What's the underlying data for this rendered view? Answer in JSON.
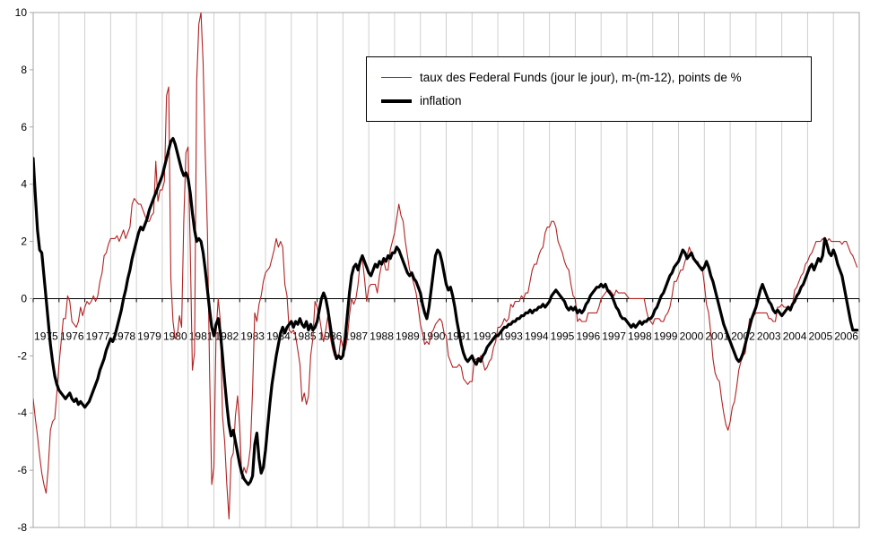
{
  "chart_data": {
    "type": "line",
    "title": "",
    "xlabel": "",
    "ylabel": "",
    "x_range": [
      1975,
      2007
    ],
    "ylim": [
      -8,
      10
    ],
    "y_ticks": [
      10,
      8,
      6,
      4,
      2,
      0,
      -2,
      -4,
      -6,
      -8
    ],
    "x_tick_years": [
      1975,
      1976,
      1977,
      1978,
      1979,
      1980,
      1981,
      1982,
      1983,
      1984,
      1985,
      1986,
      1987,
      1988,
      1989,
      1990,
      1991,
      1992,
      1993,
      1994,
      1995,
      1996,
      1997,
      1998,
      1999,
      2000,
      2001,
      2002,
      2003,
      2004,
      2005,
      2006
    ],
    "points_per_year": 12,
    "grid": "vertical-yearly-only",
    "legend_position": "inside-top-center",
    "colors": {
      "grid": "#cfcfcf",
      "border": "#a6a6a6",
      "axis": "#000000"
    },
    "series": [
      {
        "name": "taux des Federal Funds (jour le jour), m-(m-12), points de %",
        "color": "#b22222",
        "width": 1.1,
        "values": [
          -3.5,
          -4.2,
          -4.8,
          -5.5,
          -6.1,
          -6.5,
          -6.8,
          -5.9,
          -4.6,
          -4.3,
          -4.2,
          -3.3,
          -2.3,
          -1.5,
          -0.7,
          -0.7,
          0.1,
          -0.1,
          -0.8,
          -0.9,
          -1.0,
          -0.8,
          -0.3,
          -0.6,
          -0.3,
          -0.1,
          -0.2,
          -0.1,
          0.1,
          -0.1,
          0.1,
          0.6,
          0.9,
          1.5,
          1.6,
          1.9,
          2.1,
          2.1,
          2.1,
          2.2,
          2.0,
          2.2,
          2.4,
          2.1,
          2.3,
          2.5,
          3.3,
          3.5,
          3.4,
          3.3,
          3.3,
          3.1,
          2.9,
          2.7,
          2.7,
          2.9,
          3.0,
          4.8,
          3.4,
          3.8,
          3.8,
          4.1,
          7.1,
          7.4,
          0.7,
          -0.8,
          -1.4,
          -1.3,
          -0.6,
          -1.0,
          2.7,
          5.1,
          5.3,
          1.8,
          -2.5,
          -1.9,
          7.6,
          9.6,
          10.0,
          8.2,
          5.0,
          2.3,
          -2.6,
          -6.5,
          -5.9,
          -1.2,
          0.0,
          -0.8,
          -4.1,
          -5.0,
          -6.5,
          -7.7,
          -5.6,
          -5.4,
          -4.1,
          -3.4,
          -4.5,
          -6.3,
          -5.9,
          -6.1,
          -5.8,
          -5.2,
          -3.2,
          -0.5,
          -0.8,
          -0.2,
          0.1,
          0.6,
          0.9,
          1.0,
          1.1,
          1.4,
          1.7,
          2.1,
          1.8,
          2.0,
          1.8,
          0.5,
          0.1,
          -1.1,
          -1.2,
          -1.1,
          -1.3,
          -1.8,
          -2.3,
          -3.6,
          -3.3,
          -3.7,
          -3.4,
          -2.0,
          -1.4,
          -0.1,
          -0.3,
          -0.6,
          -1.1,
          -1.5,
          -1.1,
          -0.6,
          -1.3,
          -1.7,
          -2.0,
          -2.1,
          -2.0,
          -1.4,
          -1.7,
          -1.8,
          -1.4,
          -0.6,
          0.0,
          -0.2,
          0.0,
          0.5,
          1.3,
          1.4,
          0.7,
          -0.1,
          0.4,
          0.5,
          0.5,
          0.5,
          0.2,
          0.8,
          1.2,
          1.3,
          1.0,
          1.0,
          1.7,
          2.0,
          2.3,
          2.8,
          3.3,
          2.9,
          2.7,
          2.0,
          1.5,
          1.0,
          0.8,
          0.5,
          0.2,
          -0.3,
          -0.9,
          -1.2,
          -1.6,
          -1.5,
          -1.6,
          -1.2,
          -1.1,
          -0.9,
          -0.8,
          -0.7,
          -0.8,
          -1.2,
          -1.3,
          -2.0,
          -2.2,
          -2.4,
          -2.4,
          -2.4,
          -2.3,
          -2.4,
          -2.8,
          -2.9,
          -3.0,
          -2.9,
          -2.9,
          -2.2,
          -2.1,
          -2.2,
          -2.0,
          -2.2,
          -2.5,
          -2.4,
          -2.2,
          -2.1,
          -1.7,
          -1.5,
          -1.0,
          -1.0,
          -0.9,
          -0.7,
          -0.8,
          -0.7,
          -0.2,
          -0.3,
          -0.1,
          -0.1,
          -0.1,
          0.1,
          0.0,
          0.2,
          0.2,
          0.6,
          1.0,
          1.2,
          1.2,
          1.5,
          1.7,
          1.8,
          2.3,
          2.5,
          2.5,
          2.7,
          2.7,
          2.5,
          2.0,
          1.8,
          1.6,
          1.3,
          1.1,
          1.0,
          0.5,
          0.1,
          0.0,
          -0.8,
          -0.7,
          -0.8,
          -0.8,
          -0.8,
          -0.5,
          -0.5,
          -0.5,
          -0.5,
          -0.5,
          -0.3,
          0.0,
          0.1,
          0.2,
          0.3,
          0.3,
          0.2,
          0.1,
          0.3,
          0.2,
          0.2,
          0.2,
          0.2,
          0.1,
          0.0,
          0.0,
          0.0,
          0.0,
          0.0,
          0.0,
          0.0,
          0.0,
          -0.4,
          -0.7,
          -0.8,
          -0.9,
          -0.7,
          -0.7,
          -0.7,
          -0.8,
          -0.8,
          -0.6,
          -0.5,
          -0.3,
          0.1,
          0.6,
          0.6,
          0.8,
          1.0,
          1.0,
          1.3,
          1.5,
          1.8,
          1.6,
          1.4,
          1.3,
          1.3,
          1.1,
          1.1,
          0.5,
          -0.2,
          -0.5,
          -1.2,
          -2.1,
          -2.6,
          -2.8,
          -2.9,
          -3.5,
          -4.0,
          -4.4,
          -4.6,
          -4.3,
          -3.8,
          -3.6,
          -3.1,
          -2.5,
          -2.2,
          -2.0,
          -1.9,
          -1.3,
          -0.7,
          -0.8,
          -0.6,
          -0.5,
          -0.5,
          -0.5,
          -0.5,
          -0.5,
          -0.5,
          -0.7,
          -0.7,
          -0.8,
          -0.8,
          -0.3,
          -0.3,
          -0.2,
          -0.3,
          -0.3,
          -0.3,
          -0.3,
          -0.2,
          0.3,
          0.4,
          0.6,
          0.8,
          0.9,
          1.2,
          1.3,
          1.5,
          1.6,
          1.8,
          2.0,
          2.0,
          2.0,
          2.1,
          2.0,
          2.0,
          2.1,
          2.0,
          2.0,
          2.0,
          2.0,
          2.0,
          1.9,
          2.0,
          2.0,
          1.8,
          1.6,
          1.5,
          1.3,
          1.1
        ]
      },
      {
        "name": "inflation",
        "color": "#000000",
        "width": 3.2,
        "values": [
          4.9,
          3.6,
          2.4,
          1.7,
          1.6,
          0.8,
          0.0,
          -0.8,
          -1.6,
          -2.2,
          -2.7,
          -3.0,
          -3.2,
          -3.3,
          -3.4,
          -3.5,
          -3.4,
          -3.3,
          -3.5,
          -3.6,
          -3.5,
          -3.7,
          -3.6,
          -3.7,
          -3.8,
          -3.7,
          -3.6,
          -3.4,
          -3.2,
          -3.0,
          -2.8,
          -2.5,
          -2.3,
          -2.1,
          -1.8,
          -1.6,
          -1.4,
          -1.5,
          -1.3,
          -1.0,
          -0.7,
          -0.4,
          0.0,
          0.3,
          0.7,
          1.0,
          1.4,
          1.7,
          2.0,
          2.3,
          2.5,
          2.4,
          2.6,
          2.8,
          3.1,
          3.3,
          3.5,
          3.7,
          3.9,
          4.1,
          4.3,
          4.6,
          4.9,
          5.2,
          5.5,
          5.6,
          5.4,
          5.1,
          4.8,
          4.5,
          4.3,
          4.4,
          4.2,
          3.7,
          3.0,
          2.4,
          2.0,
          2.1,
          2.0,
          1.6,
          1.0,
          0.3,
          -0.4,
          -1.0,
          -1.3,
          -0.9,
          -0.7,
          -1.2,
          -2.0,
          -2.9,
          -3.7,
          -4.4,
          -4.8,
          -4.6,
          -5.0,
          -5.4,
          -5.8,
          -6.1,
          -6.3,
          -6.4,
          -6.5,
          -6.4,
          -6.2,
          -5.1,
          -4.7,
          -5.6,
          -6.1,
          -5.9,
          -5.3,
          -4.5,
          -3.7,
          -3.0,
          -2.5,
          -2.0,
          -1.6,
          -1.2,
          -1.0,
          -1.2,
          -1.0,
          -0.9,
          -0.8,
          -1.0,
          -0.8,
          -0.9,
          -0.7,
          -0.9,
          -1.0,
          -0.8,
          -1.1,
          -0.9,
          -1.1,
          -1.0,
          -0.8,
          -0.4,
          0.0,
          0.2,
          0.0,
          -0.4,
          -0.9,
          -1.4,
          -1.8,
          -2.1,
          -2.0,
          -2.1,
          -2.0,
          -1.4,
          -0.6,
          0.2,
          0.8,
          1.1,
          1.2,
          1.0,
          1.3,
          1.5,
          1.3,
          1.1,
          0.9,
          0.8,
          1.0,
          1.2,
          1.1,
          1.3,
          1.2,
          1.4,
          1.3,
          1.5,
          1.4,
          1.6,
          1.6,
          1.8,
          1.7,
          1.5,
          1.3,
          1.1,
          0.9,
          0.8,
          0.9,
          0.7,
          0.6,
          0.4,
          0.2,
          -0.2,
          -0.5,
          -0.7,
          -0.3,
          0.3,
          0.9,
          1.5,
          1.7,
          1.6,
          1.3,
          0.9,
          0.5,
          0.3,
          0.4,
          0.1,
          -0.3,
          -0.8,
          -1.2,
          -1.6,
          -1.9,
          -2.1,
          -2.2,
          -2.1,
          -2.0,
          -2.2,
          -2.3,
          -2.1,
          -2.2,
          -2.0,
          -1.9,
          -1.7,
          -1.6,
          -1.5,
          -1.4,
          -1.3,
          -1.3,
          -1.2,
          -1.1,
          -1.0,
          -1.0,
          -0.9,
          -0.9,
          -0.8,
          -0.8,
          -0.7,
          -0.7,
          -0.6,
          -0.6,
          -0.5,
          -0.5,
          -0.4,
          -0.5,
          -0.4,
          -0.4,
          -0.3,
          -0.3,
          -0.2,
          -0.3,
          -0.2,
          -0.1,
          0.1,
          0.2,
          0.3,
          0.2,
          0.1,
          0.0,
          -0.1,
          -0.3,
          -0.4,
          -0.3,
          -0.4,
          -0.3,
          -0.5,
          -0.4,
          -0.5,
          -0.4,
          -0.2,
          -0.1,
          0.1,
          0.2,
          0.3,
          0.4,
          0.4,
          0.5,
          0.4,
          0.5,
          0.3,
          0.2,
          0.1,
          -0.1,
          -0.3,
          -0.4,
          -0.6,
          -0.7,
          -0.7,
          -0.8,
          -0.9,
          -1.0,
          -0.9,
          -1.0,
          -0.9,
          -0.8,
          -0.9,
          -0.8,
          -0.8,
          -0.7,
          -0.7,
          -0.6,
          -0.4,
          -0.3,
          -0.1,
          0.1,
          0.2,
          0.4,
          0.6,
          0.8,
          0.9,
          1.1,
          1.2,
          1.3,
          1.5,
          1.7,
          1.6,
          1.4,
          1.5,
          1.6,
          1.4,
          1.3,
          1.2,
          1.1,
          1.0,
          1.1,
          1.3,
          1.1,
          0.8,
          0.6,
          0.3,
          0.0,
          -0.3,
          -0.6,
          -0.9,
          -1.1,
          -1.3,
          -1.5,
          -1.7,
          -1.9,
          -2.1,
          -2.2,
          -2.1,
          -1.9,
          -1.6,
          -1.3,
          -1.0,
          -0.7,
          -0.5,
          -0.3,
          0.0,
          0.3,
          0.5,
          0.3,
          0.1,
          -0.1,
          -0.2,
          -0.4,
          -0.5,
          -0.4,
          -0.5,
          -0.6,
          -0.5,
          -0.4,
          -0.3,
          -0.4,
          -0.2,
          -0.1,
          0.1,
          0.2,
          0.4,
          0.5,
          0.7,
          0.9,
          1.1,
          1.2,
          1.0,
          1.2,
          1.4,
          1.3,
          1.5,
          2.1,
          1.9,
          1.6,
          1.5,
          1.7,
          1.5,
          1.2,
          1.0,
          0.8,
          0.4,
          0.0,
          -0.4,
          -0.8,
          -1.1,
          -1.1,
          -1.1
        ]
      }
    ]
  },
  "legend": {
    "items": [
      {
        "label": "taux des Federal Funds (jour le jour), m-(m-12), points de %"
      },
      {
        "label": "inflation"
      }
    ]
  }
}
